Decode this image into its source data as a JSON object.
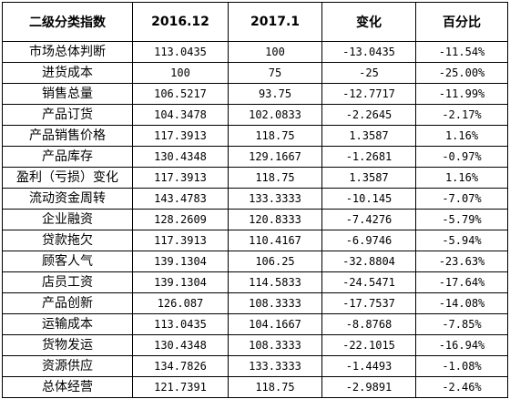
{
  "table": {
    "headers": [
      "二级分类指数",
      "2016.12",
      "2017.1",
      "变化",
      "百分比"
    ],
    "rows": [
      {
        "name": "市场总体判断",
        "v2016_12": "113.0435",
        "v2017_1": "100",
        "change": "-13.0435",
        "percent": "-11.54%"
      },
      {
        "name": "进货成本",
        "v2016_12": "100",
        "v2017_1": "75",
        "change": "-25",
        "percent": "-25.00%"
      },
      {
        "name": "销售总量",
        "v2016_12": "106.5217",
        "v2017_1": "93.75",
        "change": "-12.7717",
        "percent": "-11.99%"
      },
      {
        "name": "产品订货",
        "v2016_12": "104.3478",
        "v2017_1": "102.0833",
        "change": "-2.2645",
        "percent": "-2.17%"
      },
      {
        "name": "产品销售价格",
        "v2016_12": "117.3913",
        "v2017_1": "118.75",
        "change": "1.3587",
        "percent": "1.16%"
      },
      {
        "name": "产品库存",
        "v2016_12": "130.4348",
        "v2017_1": "129.1667",
        "change": "-1.2681",
        "percent": "-0.97%"
      },
      {
        "name": "盈利（亏损）变化",
        "v2016_12": "117.3913",
        "v2017_1": "118.75",
        "change": "1.3587",
        "percent": "1.16%"
      },
      {
        "name": "流动资金周转",
        "v2016_12": "143.4783",
        "v2017_1": "133.3333",
        "change": "-10.145",
        "percent": "-7.07%"
      },
      {
        "name": "企业融资",
        "v2016_12": "128.2609",
        "v2017_1": "120.8333",
        "change": "-7.4276",
        "percent": "-5.79%"
      },
      {
        "name": "贷款拖欠",
        "v2016_12": "117.3913",
        "v2017_1": "110.4167",
        "change": "-6.9746",
        "percent": "-5.94%"
      },
      {
        "name": "顾客人气",
        "v2016_12": "139.1304",
        "v2017_1": "106.25",
        "change": "-32.8804",
        "percent": "-23.63%"
      },
      {
        "name": "店员工资",
        "v2016_12": "139.1304",
        "v2017_1": "114.5833",
        "change": "-24.5471",
        "percent": "-17.64%"
      },
      {
        "name": "产品创新",
        "v2016_12": "126.087",
        "v2017_1": "108.3333",
        "change": "-17.7537",
        "percent": "-14.08%"
      },
      {
        "name": "运输成本",
        "v2016_12": "113.0435",
        "v2017_1": "104.1667",
        "change": "-8.8768",
        "percent": "-7.85%"
      },
      {
        "name": "货物发运",
        "v2016_12": "130.4348",
        "v2017_1": "108.3333",
        "change": "-22.1015",
        "percent": "-16.94%"
      },
      {
        "name": "资源供应",
        "v2016_12": "134.7826",
        "v2017_1": "133.3333",
        "change": "-1.4493",
        "percent": "-1.08%"
      },
      {
        "name": "总体经营",
        "v2016_12": "121.7391",
        "v2017_1": "118.75",
        "change": "-2.9891",
        "percent": "-2.46%"
      }
    ]
  }
}
